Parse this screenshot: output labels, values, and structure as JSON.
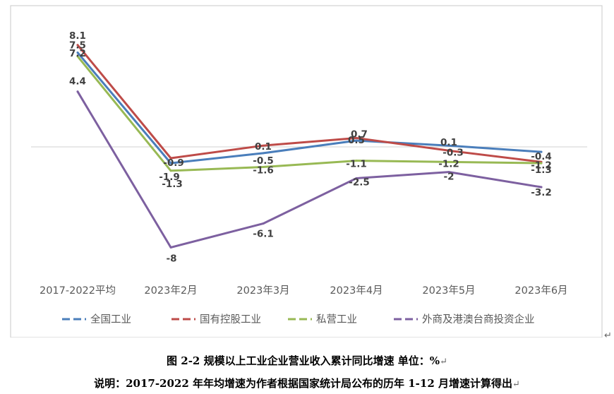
{
  "chart_data": {
    "type": "line",
    "title": "",
    "xlabel": "",
    "ylabel": "",
    "categories": [
      "2017-2022平均",
      "2023年2月",
      "2023年3月",
      "2023年4月",
      "2023年5月",
      "2023年6月"
    ],
    "ylim": [
      -10,
      10
    ],
    "legend_position": "bottom",
    "grid": false,
    "series": [
      {
        "name": "全国工业",
        "color": "#4A7EBB",
        "values": [
          7.5,
          -1.3,
          -0.5,
          0.5,
          0.1,
          -0.4
        ],
        "labels": [
          "7.5",
          "-1.3",
          "-0.5",
          "0.5",
          "0.1",
          "-0.4"
        ]
      },
      {
        "name": "国有控股工业",
        "color": "#BE4B48",
        "values": [
          8.1,
          -0.9,
          0.1,
          0.7,
          -0.3,
          -1.2
        ],
        "labels": [
          "8.1",
          "-0.9",
          "0.1",
          "0.7",
          "-0.3",
          "-1.2"
        ]
      },
      {
        "name": "私营工业",
        "color": "#98B954",
        "values": [
          7.2,
          -1.9,
          -1.6,
          -1.1,
          -1.2,
          -1.3
        ],
        "labels": [
          "7.2",
          "-1.9",
          "-1.6",
          "-1.1",
          "-1.2",
          "-1.3"
        ]
      },
      {
        "name": "外商及港澳台商投资企业",
        "color": "#7D60A0",
        "values": [
          4.4,
          -8,
          -6.1,
          -2.5,
          -2,
          -3.2
        ],
        "labels": [
          "4.4",
          "-8",
          "-6.1",
          "-2.5",
          "-2",
          "-3.2"
        ]
      }
    ]
  },
  "caption": {
    "figure": "图 2-2  规模以上工业企业营业收入累计同比增速    单位：%",
    "note": "说明：2017-2022 年年均增速为作者根据国家统计局公布的历年 1-12 月增速计算得出"
  },
  "marks": {
    "return_glyph": "↵"
  }
}
